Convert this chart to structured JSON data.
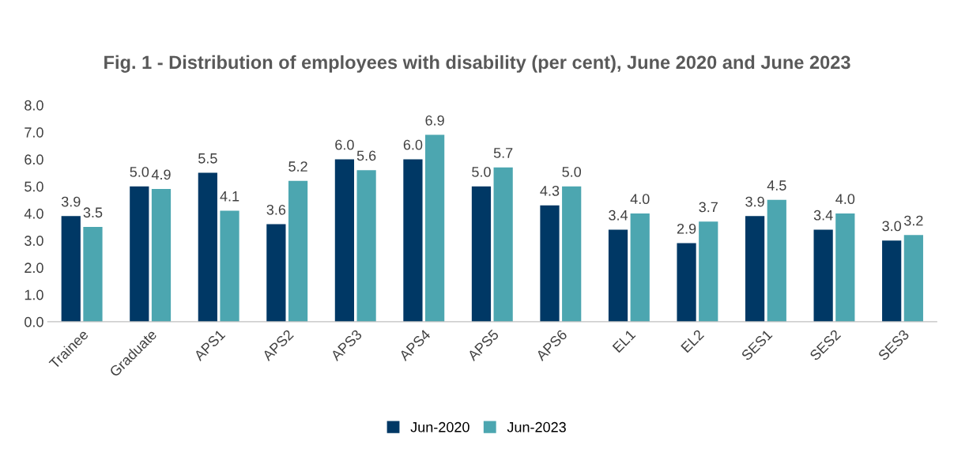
{
  "chart_data": {
    "type": "bar",
    "title": "Fig. 1 - Distribution of employees with disability (per cent), June 2020 and June 2023",
    "categories": [
      "Trainee",
      "Graduate",
      "APS1",
      "APS2",
      "APS3",
      "APS4",
      "APS5",
      "APS6",
      "EL1",
      "EL2",
      "SES1",
      "SES2",
      "SES3"
    ],
    "series": [
      {
        "name": "Jun-2020",
        "color": "#003865",
        "values": [
          3.9,
          5.0,
          5.5,
          3.6,
          6.0,
          6.0,
          5.0,
          4.3,
          3.4,
          2.9,
          3.9,
          3.4,
          3.0
        ],
        "value_labels": [
          "3.9",
          "5.0",
          "5.5",
          "3.6",
          "6.0",
          "6.0",
          "5.0",
          "4.3",
          "3.4",
          "2.9",
          "3.9",
          "3.4",
          "3.0"
        ]
      },
      {
        "name": "Jun-2023",
        "color": "#4ca6b0",
        "values": [
          3.5,
          4.9,
          4.1,
          5.2,
          5.6,
          6.9,
          5.7,
          5.0,
          4.0,
          3.7,
          4.5,
          4.0,
          3.2
        ],
        "value_labels": [
          "3.5",
          "4.9",
          "4.1",
          "5.2",
          "5.6",
          "6.9",
          "5.7",
          "5.0",
          "4.0",
          "3.7",
          "4.5",
          "4.0",
          "3.2"
        ]
      }
    ],
    "ylim": [
      0,
      8
    ],
    "yticks": [
      {
        "value": 0,
        "label": "0.0"
      },
      {
        "value": 1,
        "label": "1.0"
      },
      {
        "value": 2,
        "label": "2.0"
      },
      {
        "value": 3,
        "label": "3.0"
      },
      {
        "value": 4,
        "label": "4.0"
      },
      {
        "value": 5,
        "label": "5.0"
      },
      {
        "value": 6,
        "label": "6.0"
      },
      {
        "value": 7,
        "label": "7.0"
      },
      {
        "value": 8,
        "label": "8.0"
      }
    ],
    "grid": false,
    "legend": "bottom"
  }
}
